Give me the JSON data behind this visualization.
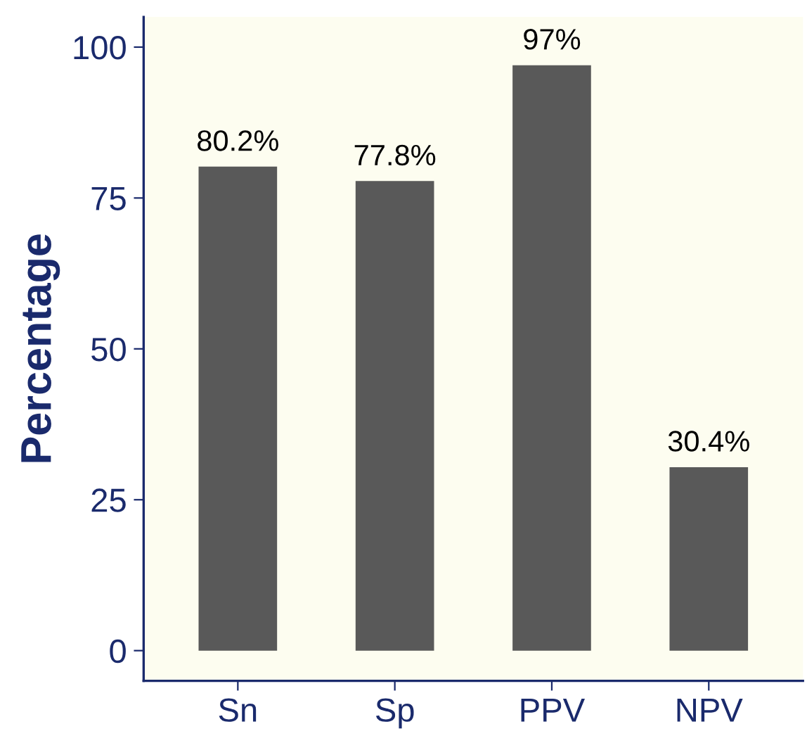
{
  "chart_data": {
    "type": "bar",
    "ylabel": "Percentage",
    "categories": [
      "Sn",
      "Sp",
      "PPV",
      "NPV"
    ],
    "values": [
      80.2,
      77.8,
      97,
      30.4
    ],
    "color": "#595959",
    "value_labels": [
      "80.2%",
      "77.8%",
      "97%",
      "30.4%"
    ],
    "ylim": [
      -5,
      105
    ],
    "yticks": [
      0,
      25,
      50,
      75,
      100
    ],
    "grid": false
  }
}
